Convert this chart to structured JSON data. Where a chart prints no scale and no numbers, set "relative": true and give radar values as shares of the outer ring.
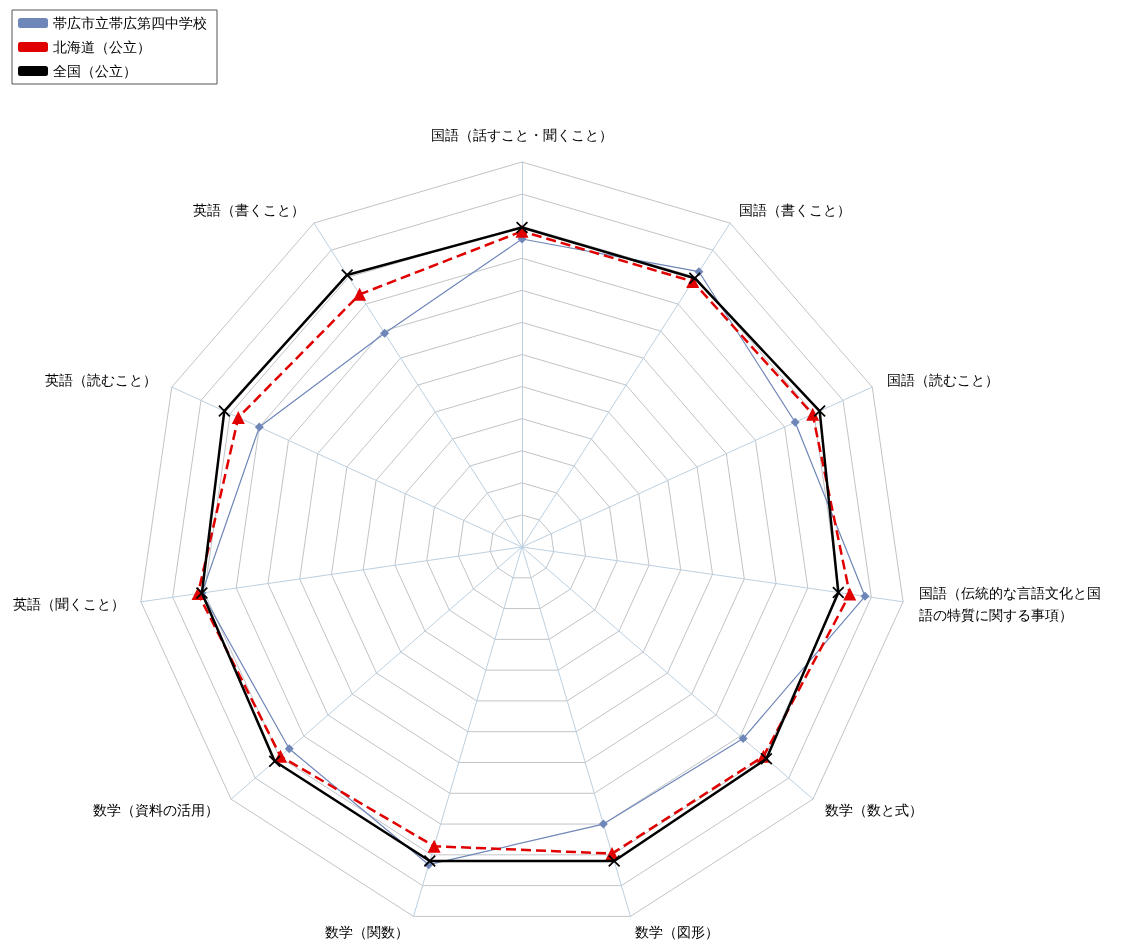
{
  "chart_data": {
    "type": "radar",
    "relative": true,
    "categories": [
      "国語（話すこと・聞くこと）",
      "国語（書くこと）",
      "国語（読むこと）",
      "国語（伝統的な言語文化と国語の特質に関する事項）",
      "数学（数と式）",
      "数学（図形）",
      "数学（関数）",
      "数学（資料の活用）",
      "英語（聞くこと）",
      "英語（読むこと）",
      "英語（書くこと）"
    ],
    "series": [
      {
        "name": "帯広市立帯広第四中学校",
        "color": "#6f86b8",
        "marker": "diamond",
        "line_style": "solid",
        "values": [
          0.8,
          0.85,
          0.78,
          0.9,
          0.76,
          0.75,
          0.86,
          0.8,
          0.84,
          0.75,
          0.66
        ]
      },
      {
        "name": "北海道（公立）",
        "color": "#e00000",
        "marker": "triangle",
        "line_style": "dashed",
        "values": [
          0.82,
          0.82,
          0.83,
          0.86,
          0.83,
          0.83,
          0.81,
          0.83,
          0.85,
          0.81,
          0.78
        ]
      },
      {
        "name": "全国（公立）",
        "color": "#000000",
        "marker": "cross",
        "line_style": "solid",
        "values": [
          0.83,
          0.83,
          0.85,
          0.83,
          0.84,
          0.85,
          0.85,
          0.85,
          0.84,
          0.85,
          0.84
        ]
      }
    ],
    "grid": true,
    "legend": "top left"
  }
}
